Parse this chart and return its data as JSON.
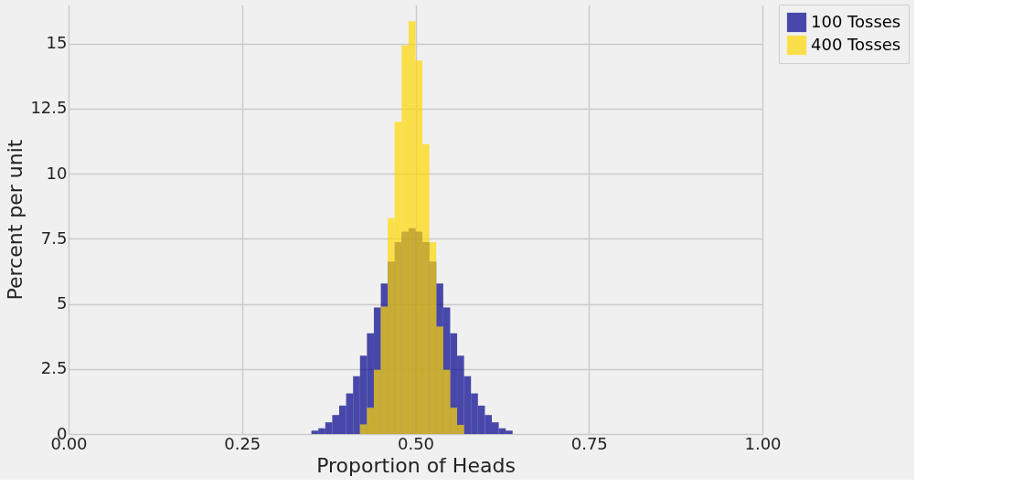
{
  "chart_data": {
    "type": "histogram",
    "xlabel": "Proportion of Heads",
    "ylabel": "Percent per unit",
    "xlim": [
      0,
      1
    ],
    "xticks": [
      {
        "value": 0,
        "label": "0.00"
      },
      {
        "value": 0.25,
        "label": "0.25"
      },
      {
        "value": 0.5,
        "label": "0.50"
      },
      {
        "value": 0.75,
        "label": "0.75"
      },
      {
        "value": 1,
        "label": "1.00"
      }
    ],
    "ylim": [
      0,
      16.5
    ],
    "yticks": [
      0,
      2.5,
      5,
      7.5,
      10,
      12.5,
      15
    ],
    "grid": true,
    "legend": "top right",
    "bins": [
      0.35,
      0.36,
      0.37,
      0.38,
      0.39,
      0.4,
      0.41,
      0.42,
      0.43,
      0.44,
      0.45,
      0.46,
      0.47,
      0.48,
      0.49,
      0.5,
      0.51,
      0.52,
      0.53,
      0.54,
      0.55,
      0.56,
      0.57,
      0.58,
      0.59,
      0.6,
      0.61,
      0.62,
      0.63,
      0.64
    ],
    "series": [
      {
        "name": "100 Tosses",
        "color": "#00008b",
        "values": [
          0.13,
          0.22,
          0.45,
          0.73,
          1.09,
          1.56,
          2.22,
          3.01,
          3.87,
          4.86,
          5.78,
          6.63,
          7.37,
          7.78,
          7.91,
          7.78,
          7.37,
          6.63,
          5.78,
          4.86,
          3.87,
          3.01,
          2.22,
          1.56,
          1.09,
          0.73,
          0.45,
          0.22,
          0.13
        ]
      },
      {
        "name": "400 Tosses",
        "color": "#ffd700",
        "values": [
          null,
          null,
          null,
          null,
          null,
          null,
          null,
          0.37,
          1.01,
          2.47,
          4.9,
          8.29,
          11.99,
          14.94,
          15.86,
          14.35,
          11.14,
          7.37,
          4.13,
          2.47,
          1.01,
          0.35,
          null,
          null,
          null,
          null,
          null,
          null,
          null
        ]
      }
    ]
  }
}
